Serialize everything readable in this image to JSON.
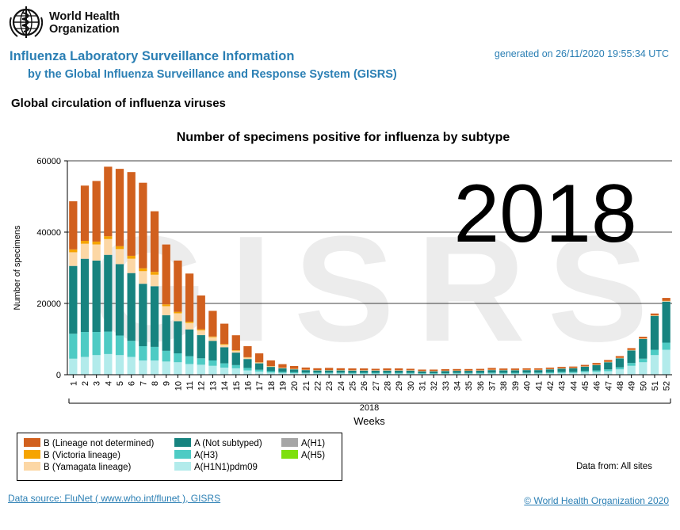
{
  "header": {
    "org_name_line1": "World Health",
    "org_name_line2": "Organization",
    "title": "Influenza Laboratory Surveillance Information",
    "subtitle": "by the Global Influenza Surveillance and Response System (GISRS)",
    "generated": "generated on 26/11/2020 19:55:34 UTC"
  },
  "section_title": "Global circulation of influenza viruses",
  "chart_data": {
    "type": "bar",
    "stacked": true,
    "title": "Number of specimens positive for influenza by subtype",
    "xlabel": "Weeks",
    "ylabel": "Number of specimens",
    "year_label": "2018",
    "overlay_text": "2018",
    "watermark": "GISRS",
    "ylim": [
      0,
      60000
    ],
    "yticks": [
      0,
      20000,
      40000,
      60000
    ],
    "grid": "horizontal",
    "categories": [
      "1",
      "2",
      "3",
      "4",
      "5",
      "6",
      "7",
      "8",
      "9",
      "10",
      "11",
      "12",
      "13",
      "14",
      "15",
      "16",
      "17",
      "18",
      "19",
      "20",
      "21",
      "22",
      "23",
      "24",
      "25",
      "26",
      "27",
      "28",
      "29",
      "30",
      "31",
      "32",
      "33",
      "34",
      "35",
      "36",
      "37",
      "38",
      "39",
      "40",
      "41",
      "42",
      "43",
      "44",
      "45",
      "46",
      "47",
      "48",
      "49",
      "50",
      "51",
      "52"
    ],
    "series": [
      {
        "name": "A(H1N1)pdm09",
        "color": "#b2ebeb",
        "values": [
          4500,
          5000,
          5500,
          5800,
          5500,
          5000,
          4000,
          4000,
          3700,
          3500,
          3000,
          2800,
          2500,
          2000,
          1800,
          1200,
          900,
          600,
          500,
          400,
          350,
          350,
          350,
          350,
          300,
          300,
          300,
          300,
          300,
          300,
          250,
          250,
          250,
          300,
          300,
          300,
          350,
          300,
          300,
          350,
          350,
          400,
          500,
          500,
          700,
          800,
          1000,
          1500,
          2500,
          3500,
          5500,
          7000
        ]
      },
      {
        "name": "A(H3)",
        "color": "#4ecbc4",
        "values": [
          7000,
          7000,
          6500,
          6300,
          5500,
          4500,
          4000,
          3800,
          3000,
          2500,
          2200,
          1800,
          1500,
          1200,
          900,
          700,
          500,
          400,
          300,
          300,
          250,
          250,
          250,
          250,
          250,
          250,
          250,
          250,
          250,
          250,
          200,
          200,
          200,
          200,
          200,
          250,
          250,
          250,
          250,
          250,
          250,
          300,
          300,
          300,
          350,
          400,
          500,
          600,
          800,
          1000,
          1500,
          2000
        ]
      },
      {
        "name": "A(Not subtyped)",
        "color": "#17837f",
        "values": [
          19000,
          20500,
          20000,
          21500,
          20000,
          19000,
          17500,
          17000,
          10000,
          9000,
          7500,
          6500,
          5500,
          4500,
          3500,
          2500,
          1800,
          1200,
          1000,
          800,
          700,
          600,
          600,
          600,
          600,
          600,
          600,
          600,
          600,
          600,
          500,
          500,
          600,
          600,
          600,
          600,
          700,
          700,
          700,
          700,
          700,
          800,
          900,
          1000,
          1200,
          1500,
          2000,
          2500,
          3500,
          5500,
          9500,
          11500
        ]
      },
      {
        "name": "A(H1)",
        "color": "#a6a6a6",
        "values": [
          50,
          50,
          50,
          50,
          50,
          50,
          50,
          50,
          30,
          30,
          30,
          30,
          20,
          20,
          20,
          20,
          10,
          10,
          10,
          10,
          10,
          10,
          10,
          10,
          10,
          10,
          10,
          10,
          10,
          10,
          10,
          10,
          10,
          10,
          10,
          10,
          10,
          10,
          10,
          10,
          10,
          10,
          10,
          10,
          10,
          10,
          10,
          10,
          10,
          10,
          10,
          10
        ]
      },
      {
        "name": "A(H5)",
        "color": "#7ee00e",
        "values": [
          0,
          0,
          0,
          0,
          0,
          0,
          0,
          0,
          0,
          0,
          0,
          0,
          0,
          0,
          0,
          0,
          0,
          0,
          0,
          0,
          0,
          0,
          0,
          0,
          0,
          0,
          0,
          0,
          0,
          0,
          0,
          0,
          0,
          0,
          0,
          0,
          0,
          0,
          0,
          0,
          0,
          0,
          0,
          0,
          0,
          0,
          0,
          0,
          0,
          0,
          0,
          0
        ]
      },
      {
        "name": "B (Yamagata lineage)",
        "color": "#fcd7a5",
        "values": [
          3800,
          4200,
          4500,
          4400,
          4200,
          4000,
          3500,
          3200,
          2500,
          2200,
          1800,
          1300,
          1000,
          700,
          500,
          400,
          200,
          150,
          100,
          100,
          80,
          80,
          80,
          80,
          80,
          80,
          80,
          80,
          80,
          80,
          60,
          60,
          60,
          60,
          60,
          60,
          60,
          60,
          60,
          60,
          60,
          60,
          60,
          60,
          60,
          60,
          80,
          80,
          100,
          100,
          100,
          150
        ]
      },
      {
        "name": "B (Victoria lineage)",
        "color": "#f6a400",
        "values": [
          800,
          800,
          800,
          800,
          800,
          800,
          800,
          800,
          500,
          400,
          350,
          300,
          200,
          200,
          150,
          100,
          80,
          60,
          50,
          40,
          30,
          30,
          30,
          30,
          30,
          30,
          30,
          30,
          30,
          30,
          30,
          30,
          30,
          30,
          30,
          30,
          30,
          30,
          30,
          30,
          30,
          30,
          30,
          30,
          40,
          40,
          40,
          40,
          50,
          50,
          60,
          80
        ]
      },
      {
        "name": "B (Lineage not determined)",
        "color": "#d1601e",
        "values": [
          13500,
          15500,
          17000,
          19500,
          21700,
          23500,
          24000,
          17000,
          16800,
          14400,
          13500,
          9500,
          7200,
          5700,
          4200,
          3100,
          2500,
          1600,
          1000,
          800,
          600,
          500,
          600,
          500,
          500,
          500,
          400,
          500,
          500,
          400,
          400,
          400,
          400,
          400,
          400,
          400,
          500,
          400,
          400,
          400,
          400,
          400,
          400,
          400,
          400,
          500,
          500,
          500,
          500,
          500,
          500,
          800
        ]
      }
    ]
  },
  "legend": {
    "items": [
      {
        "label": "B (Lineage not determined)",
        "color": "#d1601e"
      },
      {
        "label": "B (Victoria lineage)",
        "color": "#f6a400"
      },
      {
        "label": "B (Yamagata lineage)",
        "color": "#fcd7a5"
      },
      {
        "label": "A (Not subtyped)",
        "color": "#17837f"
      },
      {
        "label": "A(H3)",
        "color": "#4ecbc4"
      },
      {
        "label": "A(H1N1)pdm09",
        "color": "#b2ebeb"
      },
      {
        "label": "A(H1)",
        "color": "#a6a6a6"
      },
      {
        "label": "A(H5)",
        "color": "#7ee00e"
      }
    ]
  },
  "data_from": "Data from: All sites",
  "footer": {
    "datasource": "Data source: FluNet ( www.who.int/flunet ), GISRS",
    "copyright": "© World Health Organization 2020"
  }
}
